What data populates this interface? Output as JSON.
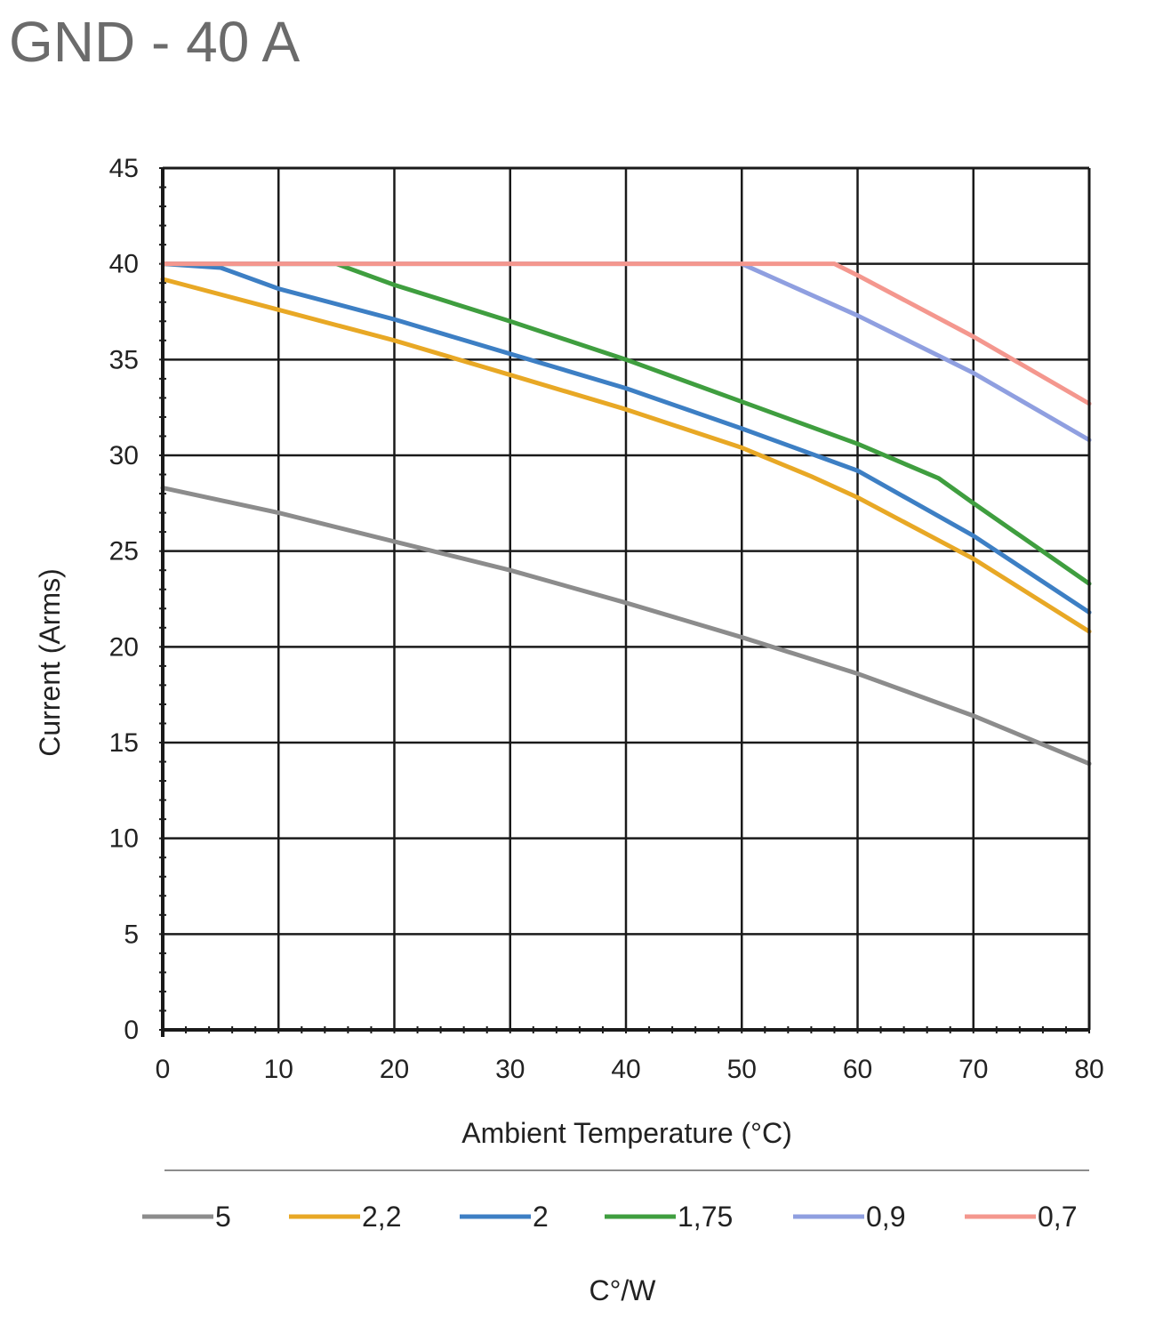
{
  "title": "GND - 40 A",
  "chart_data": {
    "type": "line",
    "xlabel": "Ambient Temperature (°C)",
    "ylabel": "Current (Arms)",
    "xlim": [
      0,
      80
    ],
    "ylim": [
      0,
      45
    ],
    "xticks": [
      0,
      10,
      20,
      30,
      40,
      50,
      60,
      70,
      80
    ],
    "yticks": [
      0,
      5,
      10,
      15,
      20,
      25,
      30,
      35,
      40,
      45
    ],
    "grid": true,
    "legend_position": "bottom",
    "legend_title": "C°/W",
    "series": [
      {
        "name": "5",
        "color": "#8c8c8c",
        "x": [
          0,
          10,
          20,
          30,
          40,
          50,
          60,
          70,
          80
        ],
        "y": [
          28.3,
          27.0,
          25.5,
          24.0,
          22.3,
          20.5,
          18.6,
          16.4,
          13.9
        ]
      },
      {
        "name": "2,2",
        "color": "#e8a825",
        "x": [
          0,
          10,
          20,
          30,
          40,
          50,
          56,
          60,
          70,
          80
        ],
        "y": [
          39.2,
          37.6,
          36.0,
          34.2,
          32.4,
          30.4,
          28.9,
          27.8,
          24.6,
          20.8
        ]
      },
      {
        "name": "2",
        "color": "#3d7fc4",
        "x": [
          0,
          5,
          10,
          20,
          30,
          40,
          50,
          60,
          70,
          80
        ],
        "y": [
          40,
          39.8,
          38.7,
          37.1,
          35.3,
          33.5,
          31.4,
          29.2,
          25.8,
          21.8
        ]
      },
      {
        "name": "1,75",
        "color": "#3f9e3f",
        "x": [
          0,
          15,
          20,
          30,
          40,
          50,
          60,
          67,
          70,
          80
        ],
        "y": [
          40,
          40,
          38.9,
          37.0,
          35.0,
          32.8,
          30.6,
          28.8,
          27.5,
          23.3
        ]
      },
      {
        "name": "0,9",
        "color": "#8f9fe0",
        "x": [
          0,
          50,
          60,
          70,
          80
        ],
        "y": [
          40,
          40,
          37.3,
          34.3,
          30.8
        ]
      },
      {
        "name": "0,7",
        "color": "#f4978e",
        "x": [
          0,
          58,
          60,
          70,
          80
        ],
        "y": [
          40,
          40,
          39.4,
          36.2,
          32.7
        ]
      }
    ]
  }
}
